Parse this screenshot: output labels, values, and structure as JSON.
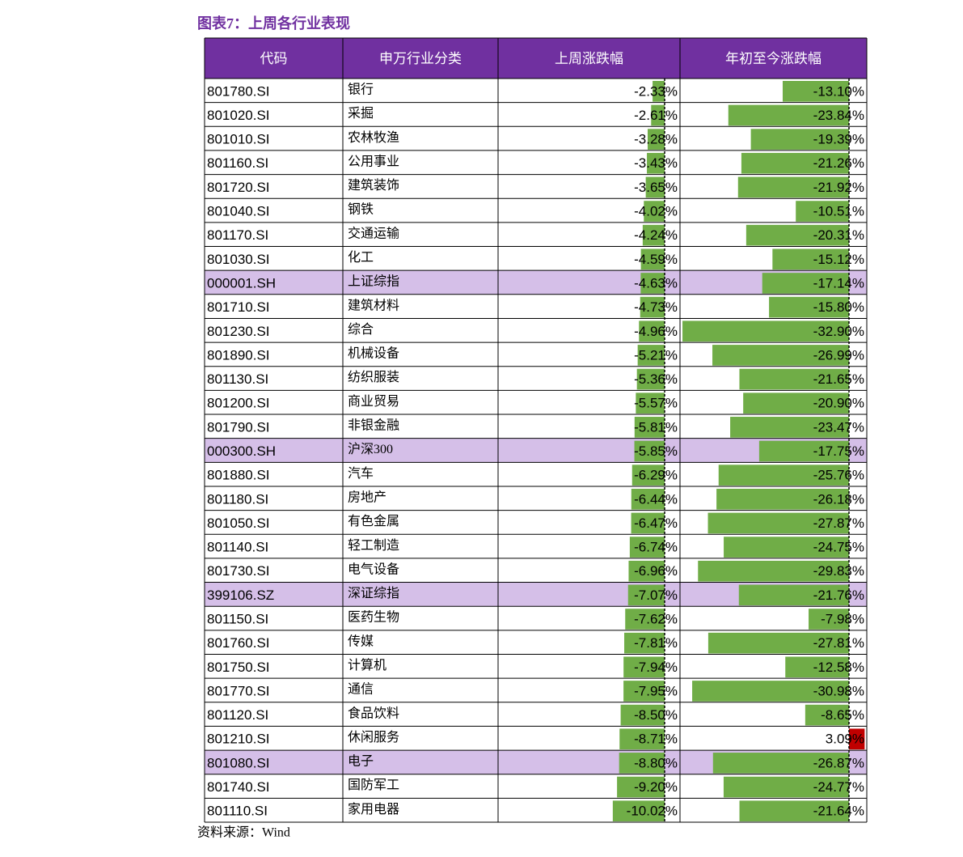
{
  "title": "图表7：上周各行业表现",
  "table": {
    "headers": [
      "代码",
      "申万行业分类",
      "上周涨跌幅",
      "年初至今涨跌幅"
    ],
    "header_color": "#7030a0",
    "highlight_color": "#d5bfe8",
    "bar_colors": {
      "negative": "#70ad47",
      "positive": "#c00000"
    },
    "rows": [
      {
        "code": "801780.SI",
        "name": "银行",
        "week": {
          "value": -2.33,
          "label": "-2.33%"
        },
        "ytd": {
          "value": -13.1,
          "label": "-13.10%"
        }
      },
      {
        "code": "801020.SI",
        "name": "采掘",
        "week": {
          "value": -2.61,
          "label": "-2.61%"
        },
        "ytd": {
          "value": -23.84,
          "label": "-23.84%"
        }
      },
      {
        "code": "801010.SI",
        "name": "农林牧渔",
        "week": {
          "value": -3.28,
          "label": "-3.28%"
        },
        "ytd": {
          "value": -19.39,
          "label": "-19.39%"
        }
      },
      {
        "code": "801160.SI",
        "name": "公用事业",
        "week": {
          "value": -3.43,
          "label": "-3.43%"
        },
        "ytd": {
          "value": -21.26,
          "label": "-21.26%"
        }
      },
      {
        "code": "801720.SI",
        "name": "建筑装饰",
        "week": {
          "value": -3.65,
          "label": "-3.65%"
        },
        "ytd": {
          "value": -21.92,
          "label": "-21.92%"
        }
      },
      {
        "code": "801040.SI",
        "name": "钢铁",
        "week": {
          "value": -4.02,
          "label": "-4.02%"
        },
        "ytd": {
          "value": -10.51,
          "label": "-10.51%"
        }
      },
      {
        "code": "801170.SI",
        "name": "交通运输",
        "week": {
          "value": -4.24,
          "label": "-4.24%"
        },
        "ytd": {
          "value": -20.31,
          "label": "-20.31%"
        }
      },
      {
        "code": "801030.SI",
        "name": "化工",
        "week": {
          "value": -4.59,
          "label": "-4.59%"
        },
        "ytd": {
          "value": -15.12,
          "label": "-15.12%"
        }
      },
      {
        "code": "000001.SH",
        "name": "上证综指",
        "week": {
          "value": -4.63,
          "label": "-4.63%"
        },
        "ytd": {
          "value": -17.14,
          "label": "-17.14%"
        },
        "highlight": true
      },
      {
        "code": "801710.SI",
        "name": "建筑材料",
        "week": {
          "value": -4.73,
          "label": "-4.73%"
        },
        "ytd": {
          "value": -15.8,
          "label": "-15.80%"
        }
      },
      {
        "code": "801230.SI",
        "name": "综合",
        "week": {
          "value": -4.96,
          "label": "-4.96%"
        },
        "ytd": {
          "value": -32.9,
          "label": "-32.90%"
        }
      },
      {
        "code": "801890.SI",
        "name": "机械设备",
        "week": {
          "value": -5.21,
          "label": "-5.21%"
        },
        "ytd": {
          "value": -26.99,
          "label": "-26.99%"
        }
      },
      {
        "code": "801130.SI",
        "name": "纺织服装",
        "week": {
          "value": -5.36,
          "label": "-5.36%"
        },
        "ytd": {
          "value": -21.65,
          "label": "-21.65%"
        }
      },
      {
        "code": "801200.SI",
        "name": "商业贸易",
        "week": {
          "value": -5.57,
          "label": "-5.57%"
        },
        "ytd": {
          "value": -20.9,
          "label": "-20.90%"
        }
      },
      {
        "code": "801790.SI",
        "name": "非银金融",
        "week": {
          "value": -5.81,
          "label": "-5.81%"
        },
        "ytd": {
          "value": -23.47,
          "label": "-23.47%"
        }
      },
      {
        "code": "000300.SH",
        "name": "沪深300",
        "week": {
          "value": -5.85,
          "label": "-5.85%"
        },
        "ytd": {
          "value": -17.75,
          "label": "-17.75%"
        },
        "highlight": true
      },
      {
        "code": "801880.SI",
        "name": "汽车",
        "week": {
          "value": -6.29,
          "label": "-6.29%"
        },
        "ytd": {
          "value": -25.76,
          "label": "-25.76%"
        }
      },
      {
        "code": "801180.SI",
        "name": "房地产",
        "week": {
          "value": -6.44,
          "label": "-6.44%"
        },
        "ytd": {
          "value": -26.18,
          "label": "-26.18%"
        }
      },
      {
        "code": "801050.SI",
        "name": "有色金属",
        "week": {
          "value": -6.47,
          "label": "-6.47%"
        },
        "ytd": {
          "value": -27.87,
          "label": "-27.87%"
        }
      },
      {
        "code": "801140.SI",
        "name": "轻工制造",
        "week": {
          "value": -6.74,
          "label": "-6.74%"
        },
        "ytd": {
          "value": -24.75,
          "label": "-24.75%"
        }
      },
      {
        "code": "801730.SI",
        "name": "电气设备",
        "week": {
          "value": -6.96,
          "label": "-6.96%"
        },
        "ytd": {
          "value": -29.83,
          "label": "-29.83%"
        }
      },
      {
        "code": "399106.SZ",
        "name": "深证综指",
        "week": {
          "value": -7.07,
          "label": "-7.07%"
        },
        "ytd": {
          "value": -21.76,
          "label": "-21.76%"
        },
        "highlight": true
      },
      {
        "code": "801150.SI",
        "name": "医药生物",
        "week": {
          "value": -7.62,
          "label": "-7.62%"
        },
        "ytd": {
          "value": -7.98,
          "label": "-7.98%"
        }
      },
      {
        "code": "801760.SI",
        "name": "传媒",
        "week": {
          "value": -7.81,
          "label": "-7.81%"
        },
        "ytd": {
          "value": -27.81,
          "label": "-27.81%"
        }
      },
      {
        "code": "801750.SI",
        "name": "计算机",
        "week": {
          "value": -7.94,
          "label": "-7.94%"
        },
        "ytd": {
          "value": -12.58,
          "label": "-12.58%"
        }
      },
      {
        "code": "801770.SI",
        "name": "通信",
        "week": {
          "value": -7.95,
          "label": "-7.95%"
        },
        "ytd": {
          "value": -30.98,
          "label": "-30.98%"
        }
      },
      {
        "code": "801120.SI",
        "name": "食品饮料",
        "week": {
          "value": -8.5,
          "label": "-8.50%"
        },
        "ytd": {
          "value": -8.65,
          "label": "-8.65%"
        }
      },
      {
        "code": "801210.SI",
        "name": "休闲服务",
        "week": {
          "value": -8.71,
          "label": "-8.71%"
        },
        "ytd": {
          "value": 3.09,
          "label": "3.09%"
        }
      },
      {
        "code": "801080.SI",
        "name": "电子",
        "week": {
          "value": -8.8,
          "label": "-8.80%"
        },
        "ytd": {
          "value": -26.87,
          "label": "-26.87%"
        },
        "highlight": true
      },
      {
        "code": "801740.SI",
        "name": "国防军工",
        "week": {
          "value": -9.2,
          "label": "-9.20%"
        },
        "ytd": {
          "value": -24.77,
          "label": "-24.77%"
        }
      },
      {
        "code": "801110.SI",
        "name": "家用电器",
        "week": {
          "value": -10.02,
          "label": "-10.02%"
        },
        "ytd": {
          "value": -21.64,
          "label": "-21.64%"
        }
      }
    ]
  },
  "source": "资料来源：Wind"
}
